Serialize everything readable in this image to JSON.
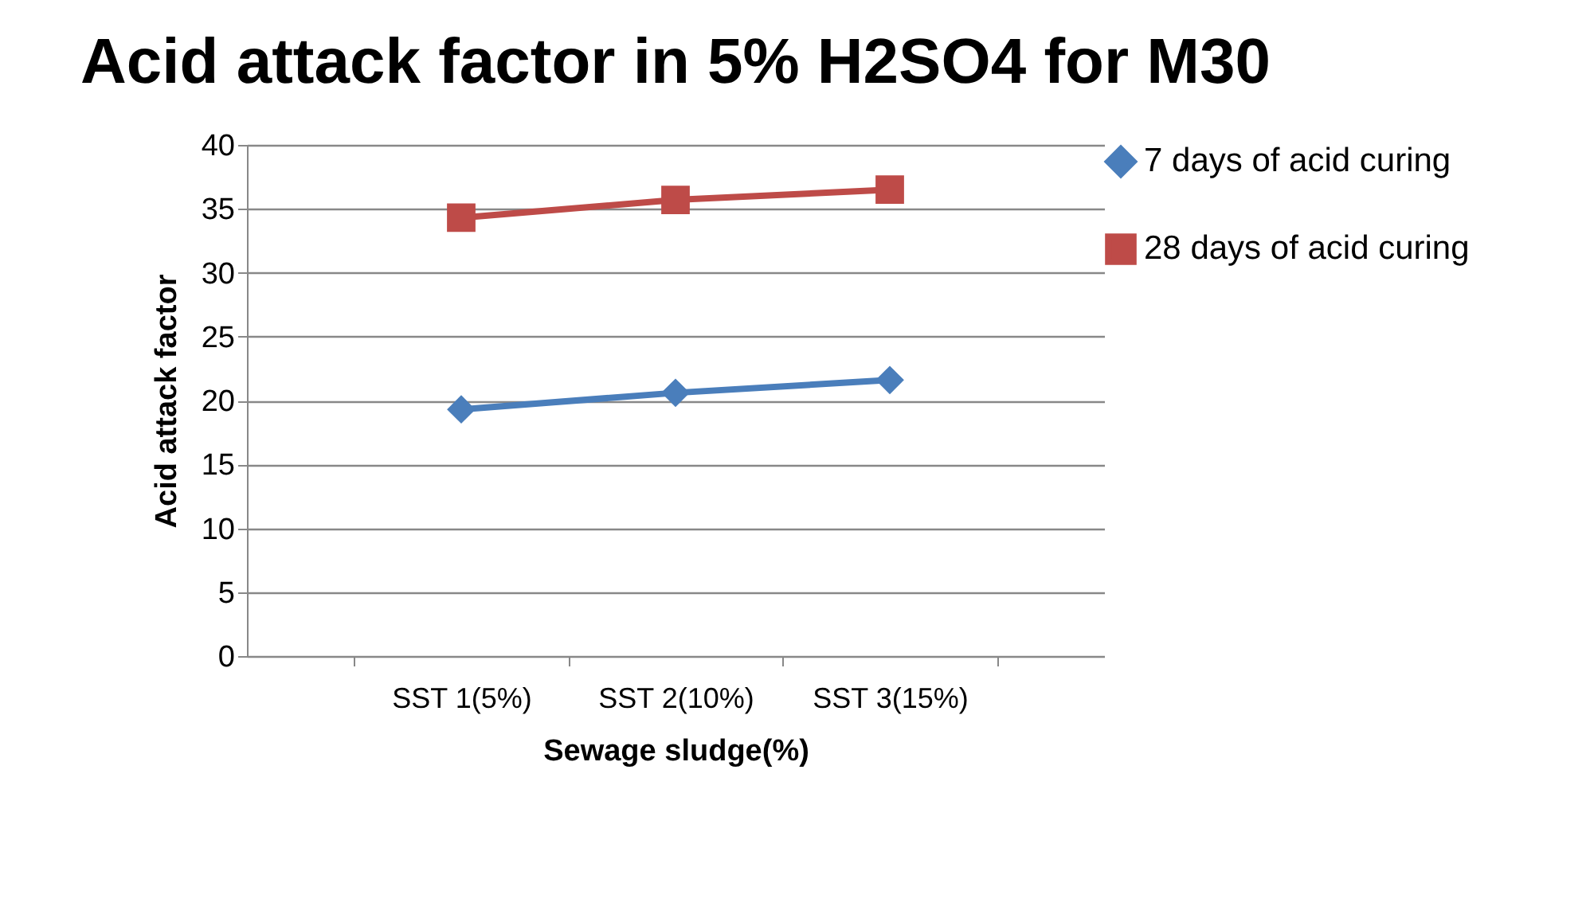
{
  "chart_data": {
    "type": "line",
    "title": "Acid attack factor in 5% H2SO4 for M30",
    "xlabel": "Sewage sludge(%)",
    "ylabel": "Acid attack factor",
    "categories": [
      "SST 1(5%)",
      "SST 2(10%)",
      "SST 3(15%)"
    ],
    "series": [
      {
        "name": "7 days of acid curing",
        "color": "#4a7ebb",
        "marker": "diamond",
        "values": [
          19.3,
          20.6,
          21.6
        ]
      },
      {
        "name": "28 days of acid curing",
        "color": "#be4b48",
        "marker": "square",
        "values": [
          34.3,
          35.7,
          36.5
        ]
      }
    ],
    "ylim": [
      0,
      40
    ],
    "yticks": [
      0,
      5,
      10,
      15,
      20,
      25,
      30,
      35,
      40
    ],
    "grid": "y",
    "legend": "right"
  }
}
